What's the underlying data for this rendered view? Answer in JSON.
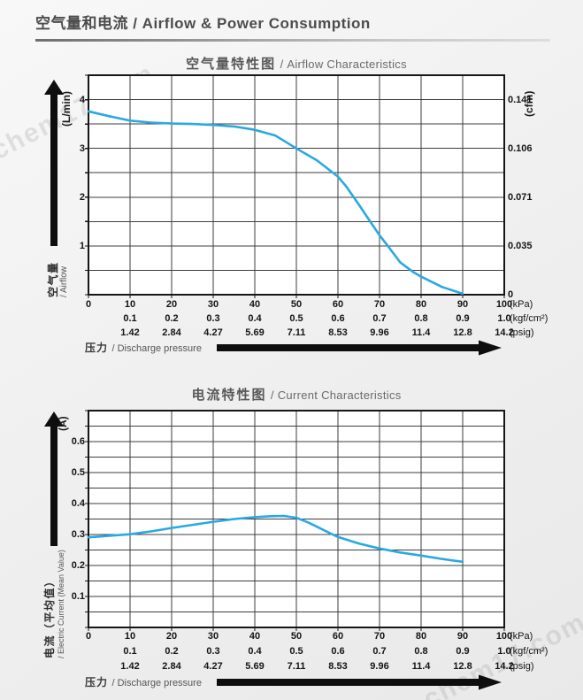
{
  "page": {
    "header": "空气量和电流 / Airflow & Power Consumption",
    "watermark": "chem17.com"
  },
  "pressure_axis": {
    "label_zh": "压力",
    "label_en": "/ Discharge pressure",
    "rows": [
      {
        "unit": "(kPa)",
        "start_index": 0,
        "values": [
          "0",
          "10",
          "20",
          "30",
          "40",
          "50",
          "60",
          "70",
          "80",
          "90",
          "100"
        ]
      },
      {
        "unit": "(kgf/cm²)",
        "start_index": 1,
        "values": [
          "0.1",
          "0.2",
          "0.3",
          "0.4",
          "0.5",
          "0.6",
          "0.7",
          "0.8",
          "0.9",
          "1.0"
        ]
      },
      {
        "unit": "(psig)",
        "start_index": 1,
        "values": [
          "1.42",
          "2.84",
          "4.27",
          "5.69",
          "7.11",
          "8.53",
          "9.96",
          "11.4",
          "12.8",
          "14.2"
        ]
      }
    ]
  },
  "chart_data": [
    {
      "type": "line",
      "title_zh": "空气量特性图",
      "title_en": "/ Airflow Characteristics",
      "xlabel": "压力 / Discharge pressure",
      "ylabel": "空气量 / Airflow",
      "y_left_unit": "(L/min)",
      "y_right_unit": "(cfm)",
      "axis_name_zh": "空气量",
      "axis_name_en": "/ Airflow",
      "x_range": [
        0,
        100
      ],
      "x_grid_step": 10,
      "y_range": [
        0,
        4.5
      ],
      "y_grid_step": 0.5,
      "grid": true,
      "line_color": "#29a9e1",
      "y_left_ticks": [
        {
          "v": 4,
          "label": "4"
        },
        {
          "v": 3,
          "label": "3"
        },
        {
          "v": 2,
          "label": "2"
        },
        {
          "v": 1,
          "label": "1"
        }
      ],
      "y_right_ticks": [
        {
          "v": 4,
          "label": "0.141"
        },
        {
          "v": 3,
          "label": "0.106"
        },
        {
          "v": 2,
          "label": "0.071"
        },
        {
          "v": 1,
          "label": "0.035"
        },
        {
          "v": 0,
          "label": "0"
        }
      ],
      "points": [
        [
          0,
          3.76
        ],
        [
          5,
          3.66
        ],
        [
          10,
          3.57
        ],
        [
          15,
          3.53
        ],
        [
          20,
          3.51
        ],
        [
          25,
          3.5
        ],
        [
          30,
          3.48
        ],
        [
          35,
          3.45
        ],
        [
          40,
          3.38
        ],
        [
          45,
          3.26
        ],
        [
          50,
          3.0
        ],
        [
          55,
          2.75
        ],
        [
          60,
          2.42
        ],
        [
          62,
          2.22
        ],
        [
          65,
          1.85
        ],
        [
          68,
          1.47
        ],
        [
          70,
          1.22
        ],
        [
          72,
          1.0
        ],
        [
          75,
          0.66
        ],
        [
          78,
          0.47
        ],
        [
          80,
          0.37
        ],
        [
          85,
          0.16
        ],
        [
          90,
          0.02
        ]
      ]
    },
    {
      "type": "line",
      "title_zh": "电流特性图",
      "title_en": "/ Current Characteristics",
      "xlabel": "压力 / Discharge pressure",
      "ylabel": "电流（平均值）/ Electric Current (Mean Value)",
      "y_left_unit": "(A)",
      "y_right_unit": "",
      "axis_name_zh": "电流（平均值）",
      "axis_name_en": "/ Electric Current (Mean Value)",
      "x_range": [
        0,
        100
      ],
      "x_grid_step": 10,
      "y_range": [
        0,
        0.7
      ],
      "y_grid_step": 0.05,
      "grid": true,
      "line_color": "#29a9e1",
      "y_left_ticks": [
        {
          "v": 0.6,
          "label": "0.6"
        },
        {
          "v": 0.5,
          "label": "0.5"
        },
        {
          "v": 0.4,
          "label": "0.4"
        },
        {
          "v": 0.3,
          "label": "0.3"
        },
        {
          "v": 0.2,
          "label": "0.2"
        },
        {
          "v": 0.1,
          "label": "0.1"
        }
      ],
      "y_right_ticks": [],
      "points": [
        [
          0,
          0.291
        ],
        [
          5,
          0.296
        ],
        [
          10,
          0.301
        ],
        [
          15,
          0.31
        ],
        [
          20,
          0.321
        ],
        [
          25,
          0.331
        ],
        [
          30,
          0.341
        ],
        [
          35,
          0.35
        ],
        [
          40,
          0.356
        ],
        [
          44,
          0.359
        ],
        [
          47,
          0.36
        ],
        [
          50,
          0.354
        ],
        [
          53,
          0.338
        ],
        [
          55,
          0.325
        ],
        [
          58,
          0.305
        ],
        [
          60,
          0.292
        ],
        [
          65,
          0.271
        ],
        [
          70,
          0.255
        ],
        [
          75,
          0.242
        ],
        [
          80,
          0.232
        ],
        [
          85,
          0.221
        ],
        [
          90,
          0.212
        ]
      ]
    }
  ]
}
